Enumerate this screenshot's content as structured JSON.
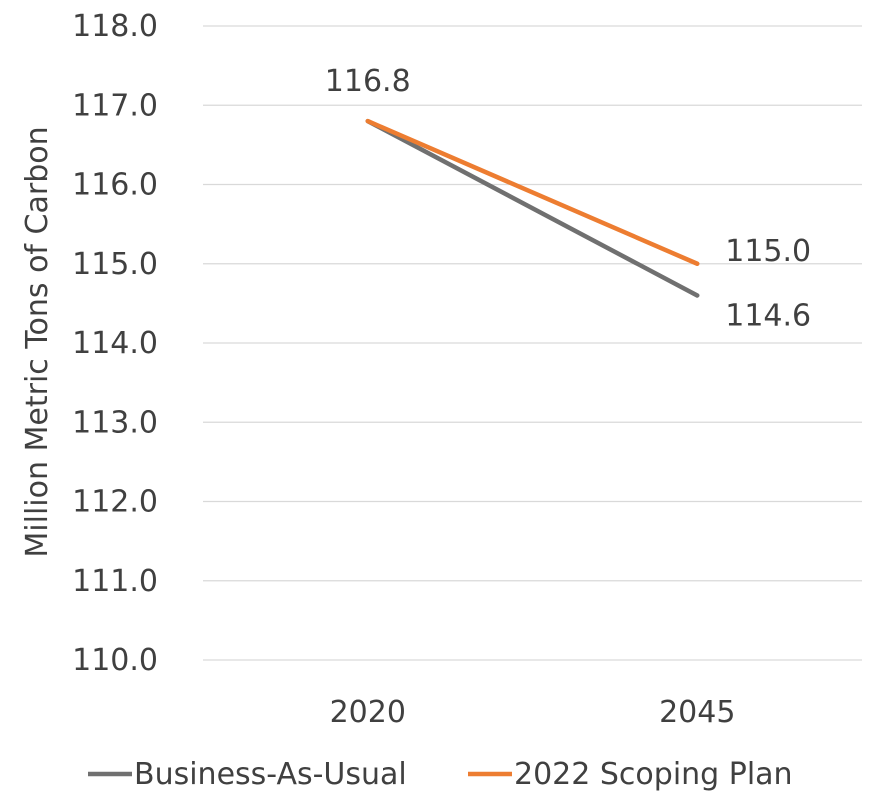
{
  "chart_data": {
    "type": "line",
    "title": "",
    "xlabel": "",
    "ylabel": "Million Metric Tons of Carbon",
    "categories": [
      "2020",
      "2045"
    ],
    "ylim": [
      110.0,
      118.0
    ],
    "yticks": [
      "110.0",
      "111.0",
      "112.0",
      "113.0",
      "114.0",
      "115.0",
      "116.0",
      "117.0",
      "118.0"
    ],
    "grid": true,
    "legend_position": "bottom",
    "series": [
      {
        "name": "Business-As-Usual",
        "color": "#707070",
        "values": [
          116.8,
          114.6
        ],
        "labels": [
          "",
          "114.6"
        ]
      },
      {
        "name": "2022 Scoping Plan",
        "color": "#ed7d31",
        "values": [
          116.8,
          115.0
        ],
        "labels": [
          "116.8",
          "115.0"
        ]
      }
    ]
  }
}
